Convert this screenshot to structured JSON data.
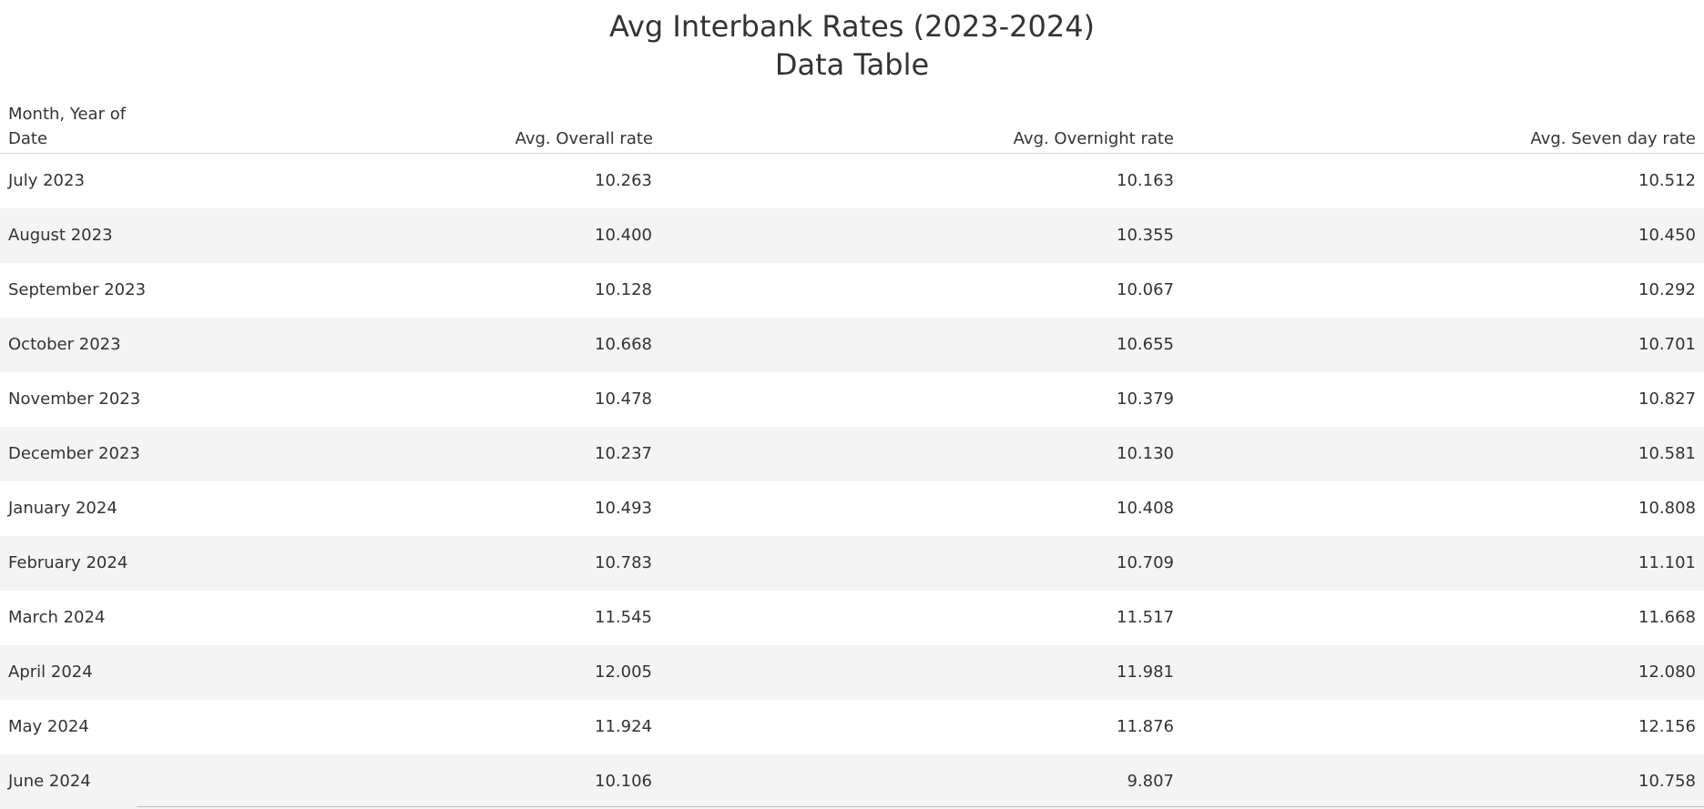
{
  "title": "Avg Interbank Rates (2023-2024)",
  "subtitle": "Data Table",
  "chart_data": {
    "type": "table",
    "title": "Avg Interbank Rates (2023-2024)",
    "subtitle": "Data Table",
    "columns": [
      "Month, Year of Date",
      "Avg. Overall rate",
      "Avg. Overnight rate",
      "Avg. Seven day rate"
    ],
    "rows": [
      {
        "month": "July 2023",
        "overall": "10.263",
        "overnight": "10.163",
        "seven_day": "10.512"
      },
      {
        "month": "August 2023",
        "overall": "10.400",
        "overnight": "10.355",
        "seven_day": "10.450"
      },
      {
        "month": "September 2023",
        "overall": "10.128",
        "overnight": "10.067",
        "seven_day": "10.292"
      },
      {
        "month": "October 2023",
        "overall": "10.668",
        "overnight": "10.655",
        "seven_day": "10.701"
      },
      {
        "month": "November 2023",
        "overall": "10.478",
        "overnight": "10.379",
        "seven_day": "10.827"
      },
      {
        "month": "December 2023",
        "overall": "10.237",
        "overnight": "10.130",
        "seven_day": "10.581"
      },
      {
        "month": "January 2024",
        "overall": "10.493",
        "overnight": "10.408",
        "seven_day": "10.808"
      },
      {
        "month": "February 2024",
        "overall": "10.783",
        "overnight": "10.709",
        "seven_day": "11.101"
      },
      {
        "month": "March 2024",
        "overall": "11.545",
        "overnight": "11.517",
        "seven_day": "11.668"
      },
      {
        "month": "April 2024",
        "overall": "12.005",
        "overnight": "11.981",
        "seven_day": "12.080"
      },
      {
        "month": "May 2024",
        "overall": "11.924",
        "overnight": "11.876",
        "seven_day": "12.156"
      },
      {
        "month": "June 2024",
        "overall": "10.106",
        "overnight": "9.807",
        "seven_day": "10.758"
      }
    ]
  },
  "colors": {
    "text": "#333333",
    "row_alt": "#f4f4f4",
    "divider": "#d4d4d4"
  }
}
